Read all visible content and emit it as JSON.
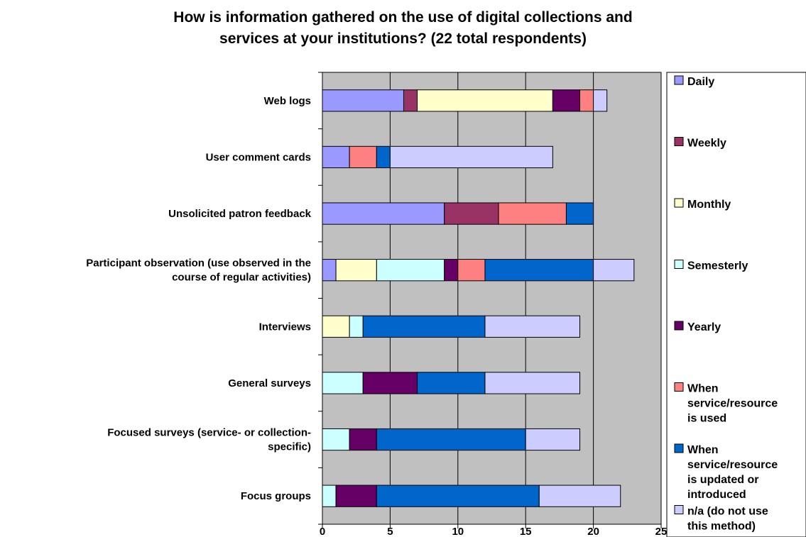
{
  "chart_data": {
    "type": "bar",
    "orientation": "horizontal",
    "stacked": true,
    "title": "How is information gathered on the use of digital collections and services at your institutions? (22 total respondents)",
    "title_lines": [
      "How is information gathered on the use of digital collections and",
      "services at your institutions? (22 total respondents)"
    ],
    "xlabel": "",
    "ylabel": "",
    "xlim": [
      0,
      25
    ],
    "xticks": [
      0,
      5,
      10,
      15,
      20,
      25
    ],
    "grid": true,
    "legend_position": "right",
    "categories": [
      "Web logs",
      "User comment cards",
      "Unsolicited patron feedback",
      "Participant observation (use observed in the course of regular activities)",
      "Interviews",
      "General surveys",
      "Focused surveys (service- or collection-specific)",
      "Focus groups"
    ],
    "category_lines": [
      [
        "Web logs"
      ],
      [
        "User comment cards"
      ],
      [
        "Unsolicited patron feedback"
      ],
      [
        "Participant observation (use observed in the",
        "course of regular activities)"
      ],
      [
        "Interviews"
      ],
      [
        "General surveys"
      ],
      [
        "Focused surveys (service- or collection-",
        "specific)"
      ],
      [
        "Focus groups"
      ]
    ],
    "series": [
      {
        "name": "Daily",
        "legend_lines": [
          "Daily"
        ],
        "color": "#9999FF",
        "values": [
          6,
          2,
          9,
          1,
          0,
          0,
          0,
          0
        ]
      },
      {
        "name": "Weekly",
        "legend_lines": [
          "Weekly"
        ],
        "color": "#993366",
        "values": [
          1,
          0,
          4,
          0,
          0,
          0,
          0,
          0
        ]
      },
      {
        "name": "Monthly",
        "legend_lines": [
          "Monthly"
        ],
        "color": "#FFFFCC",
        "values": [
          10,
          0,
          0,
          3,
          2,
          0,
          0,
          0
        ]
      },
      {
        "name": "Semesterly",
        "legend_lines": [
          "Semesterly"
        ],
        "color": "#CCFFFF",
        "values": [
          0,
          0,
          0,
          5,
          1,
          3,
          2,
          1
        ]
      },
      {
        "name": "Yearly",
        "legend_lines": [
          "Yearly"
        ],
        "color": "#660066",
        "values": [
          2,
          0,
          0,
          1,
          0,
          4,
          2,
          3
        ]
      },
      {
        "name": "When service/resource is used",
        "legend_lines": [
          "When",
          "service/resource",
          "is used"
        ],
        "color": "#FF8080",
        "values": [
          1,
          2,
          5,
          2,
          0,
          0,
          0,
          0
        ]
      },
      {
        "name": "When service/resource is updated or introduced",
        "legend_lines": [
          "When",
          "service/resource",
          "is updated or",
          "introduced"
        ],
        "color": "#0066CC",
        "values": [
          0,
          1,
          2,
          8,
          9,
          5,
          11,
          12
        ]
      },
      {
        "name": "n/a (do not use this method)",
        "legend_lines": [
          "n/a (do not use",
          "this method)"
        ],
        "color": "#CCCCFF",
        "values": [
          1,
          12,
          0,
          3,
          7,
          7,
          4,
          6
        ]
      }
    ],
    "plot_background": "#C0C0C0"
  }
}
